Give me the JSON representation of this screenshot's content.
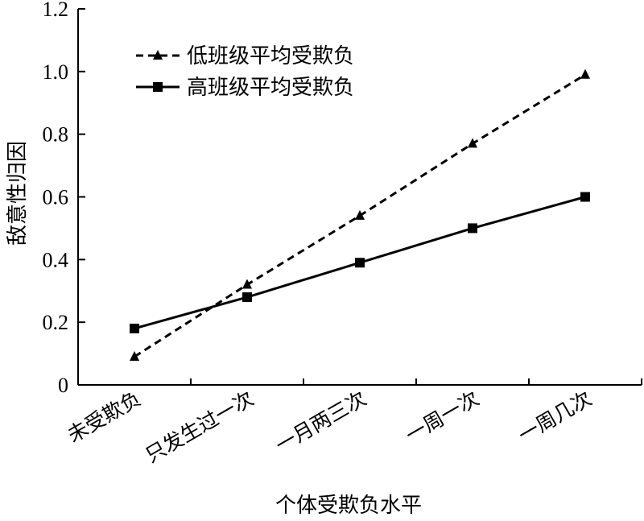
{
  "chart_data": {
    "type": "line",
    "title": "",
    "xlabel": "个体受欺负水平",
    "ylabel": "敌意性归因",
    "categories": [
      "未受欺负",
      "只发生过一次",
      "一月两三次",
      "一周一次",
      "一周几次"
    ],
    "ylim": [
      0,
      1.2
    ],
    "yticks": [
      "0",
      "0.2",
      "0.4",
      "0.6",
      "0.8",
      "1.0",
      "1.2"
    ],
    "grid": false,
    "legend_position": "top-left",
    "series": [
      {
        "name": "低班级平均受欺负",
        "values": [
          0.09,
          0.32,
          0.54,
          0.77,
          0.99
        ],
        "line": "dashed",
        "marker": "triangle",
        "color": "#000000"
      },
      {
        "name": "高班级平均受欺负",
        "values": [
          0.18,
          0.28,
          0.39,
          0.5,
          0.6
        ],
        "line": "solid",
        "marker": "square",
        "color": "#000000"
      }
    ]
  }
}
